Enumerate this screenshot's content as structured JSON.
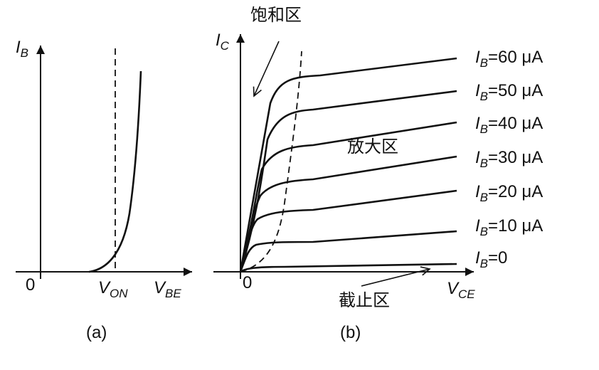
{
  "figure_a": {
    "axis_y": {
      "main": "I",
      "sub": "B"
    },
    "axis_x": {
      "main": "V",
      "sub": "BE"
    },
    "origin": "0",
    "threshold": {
      "main": "V",
      "sub": "ON"
    },
    "caption": "(a)"
  },
  "figure_b": {
    "axis_y": {
      "main": "I",
      "sub": "C"
    },
    "axis_x": {
      "main": "V",
      "sub": "CE"
    },
    "origin": "0",
    "caption": "(b)",
    "regions": {
      "saturation": "饱和区",
      "active": "放大区",
      "cutoff": "截止区"
    },
    "curves": [
      {
        "main": "I",
        "sub": "B",
        "rest": "=60 μA"
      },
      {
        "main": "I",
        "sub": "B",
        "rest": "=50 μA"
      },
      {
        "main": "I",
        "sub": "B",
        "rest": "=40 μA"
      },
      {
        "main": "I",
        "sub": "B",
        "rest": "=30 μA"
      },
      {
        "main": "I",
        "sub": "B",
        "rest": "=20 μA"
      },
      {
        "main": "I",
        "sub": "B",
        "rest": "=10 μA"
      },
      {
        "main": "I",
        "sub": "B",
        "rest": "=0"
      }
    ]
  },
  "colors": {
    "stroke": "#111111",
    "background": "#ffffff"
  }
}
